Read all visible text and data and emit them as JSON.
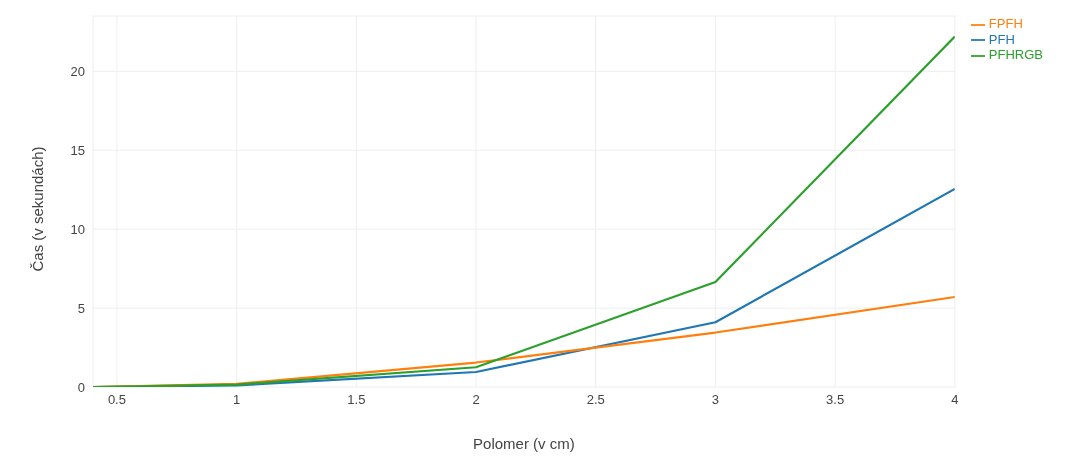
{
  "chart_data": {
    "type": "line",
    "xlabel": "Polomer (v cm)",
    "ylabel": "Čas (v sekundách)",
    "x": [
      0.4,
      1,
      2,
      3,
      4
    ],
    "series": [
      {
        "name": "PFH",
        "color": "#1f77b4",
        "values": [
          0,
          0.1,
          0.95,
          4.1,
          12.55
        ]
      },
      {
        "name": "FPFH",
        "color": "#ff7f0e",
        "values": [
          0,
          0.2,
          1.55,
          3.45,
          5.7
        ]
      },
      {
        "name": "PFHRGB",
        "color": "#2ca02c",
        "values": [
          0,
          0.15,
          1.25,
          6.65,
          22.2
        ]
      }
    ],
    "xlim": [
      0.4,
      4
    ],
    "xticks": [
      0.5,
      1,
      1.5,
      2,
      2.5,
      3,
      3.5,
      4
    ],
    "ylim": [
      0,
      23.5
    ],
    "yticks": [
      0,
      5,
      10,
      15,
      20
    ],
    "grid": true,
    "legend": "top right",
    "marker": "none",
    "line_style": "solid"
  }
}
